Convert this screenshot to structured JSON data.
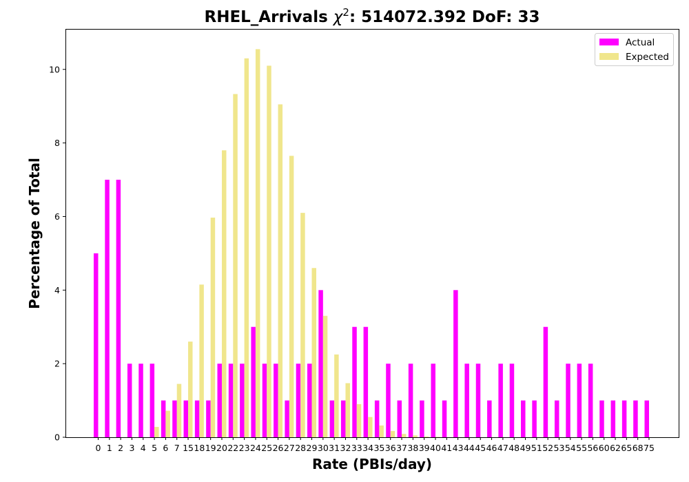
{
  "chart_data": {
    "type": "bar",
    "title_prefix": "RHEL_Arrivals ",
    "title_chi": "χ",
    "title_sup": "2",
    "title_suffix": ": 514072.392 DoF: 33",
    "xlabel": "Rate (PBIs/day)",
    "ylabel": "Percentage of Total",
    "ylim": [
      0,
      11.1
    ],
    "yticks": [
      "0",
      "2",
      "4",
      "6",
      "8",
      "10"
    ],
    "grid": false,
    "legend_position": "top-right",
    "categories": [
      "0",
      "1",
      "2",
      "3",
      "4",
      "5",
      "6",
      "7",
      "15",
      "18",
      "19",
      "20",
      "22",
      "23",
      "24",
      "25",
      "26",
      "27",
      "28",
      "29",
      "30",
      "31",
      "32",
      "33",
      "34",
      "35",
      "36",
      "37",
      "38",
      "39",
      "40",
      "41",
      "43",
      "44",
      "45",
      "46",
      "47",
      "48",
      "49",
      "51",
      "52",
      "53",
      "54",
      "55",
      "56",
      "60",
      "62",
      "65",
      "68",
      "75"
    ],
    "series": [
      {
        "name": "Actual",
        "color": "#ff00ff",
        "values": [
          5,
          7,
          7,
          2,
          2,
          2,
          1,
          1,
          1,
          1,
          1,
          2,
          2,
          2,
          3,
          2,
          2,
          1,
          2,
          2,
          4,
          1,
          1,
          3,
          3,
          1,
          2,
          1,
          2,
          1,
          2,
          1,
          4,
          2,
          2,
          1,
          2,
          2,
          1,
          1,
          3,
          1,
          2,
          2,
          2,
          1,
          1,
          1,
          1,
          1
        ]
      },
      {
        "name": "Expected",
        "color": "#f0e68c",
        "values": [
          0,
          0,
          0,
          0,
          0,
          0.28,
          0.72,
          1.45,
          2.6,
          4.15,
          5.97,
          7.8,
          9.33,
          10.3,
          10.55,
          10.1,
          9.05,
          7.65,
          6.1,
          4.6,
          3.3,
          2.25,
          1.47,
          0.9,
          0.55,
          0.32,
          0.17,
          0.09,
          0.05,
          0.02,
          0.01,
          0,
          0,
          0,
          0,
          0,
          0,
          0,
          0,
          0,
          0,
          0,
          0,
          0,
          0,
          0,
          0,
          0,
          0,
          0
        ]
      }
    ]
  }
}
